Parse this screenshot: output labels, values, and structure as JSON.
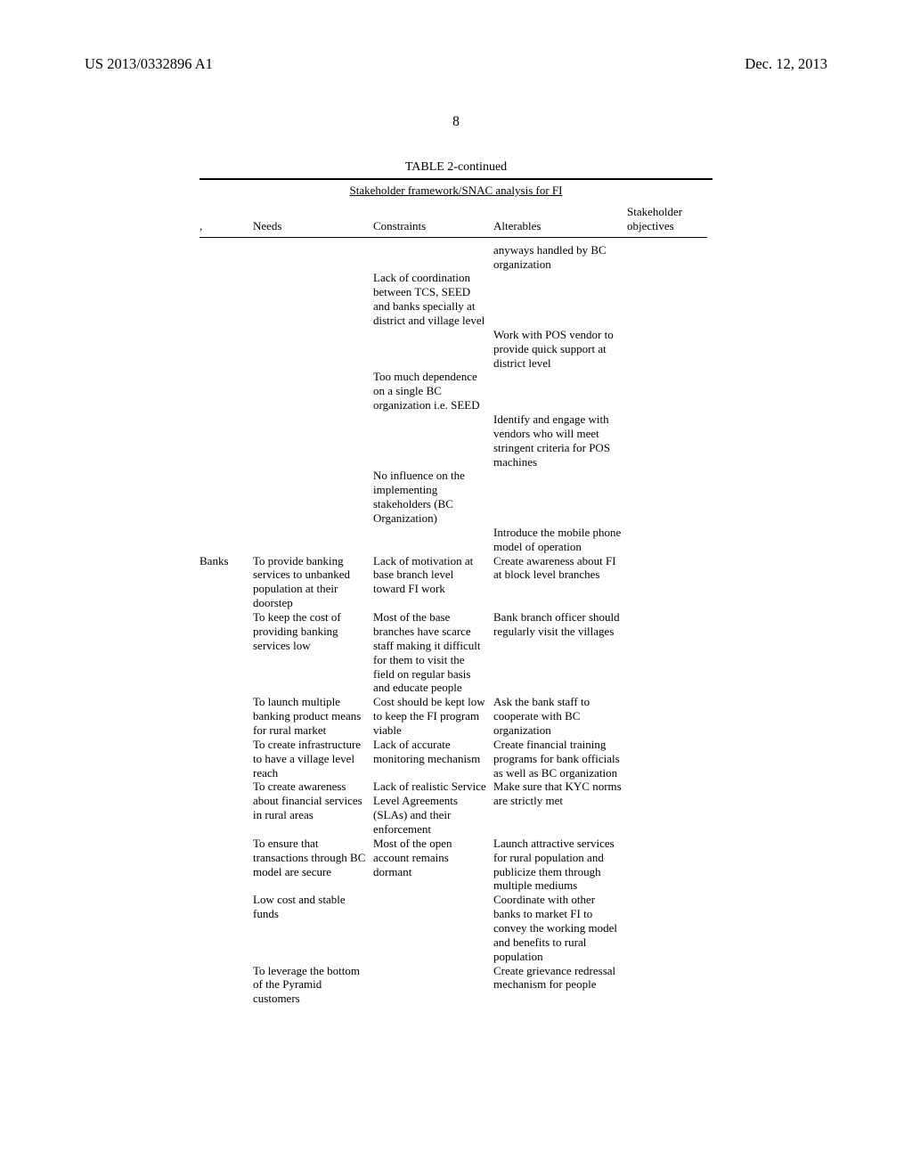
{
  "header": {
    "left": "US 2013/0332896 A1",
    "right": "Dec. 12, 2013"
  },
  "page_number": "8",
  "table": {
    "title": "TABLE 2-continued",
    "subtitle": "Stakeholder framework/SNAC analysis for FI",
    "columns": {
      "stakeholder": ",",
      "needs": "Needs",
      "constraints": "Constraints",
      "alterables": "Alterables",
      "objectives": "Stakeholder objectives"
    },
    "rows": [
      {
        "sh": "",
        "need": "",
        "con": "",
        "alt": "anyways handled by BC organization",
        "obj": ""
      },
      {
        "sh": "",
        "need": "",
        "con": "Lack of coordination between TCS, SEED and banks specially at district and village level",
        "alt": "",
        "obj": ""
      },
      {
        "sh": "",
        "need": "",
        "con": "",
        "alt": "Work with POS vendor to provide quick support at district level",
        "obj": ""
      },
      {
        "sh": "",
        "need": "",
        "con": "Too much dependence on a single BC organization i.e. SEED",
        "alt": "",
        "obj": ""
      },
      {
        "sh": "",
        "need": "",
        "con": "",
        "alt": "Identify and engage with vendors who will meet stringent criteria for POS machines",
        "obj": ""
      },
      {
        "sh": "",
        "need": "",
        "con": "No influence on the implementing stakeholders (BC Organization)",
        "alt": "",
        "obj": ""
      },
      {
        "sh": "",
        "need": "",
        "con": "",
        "alt": "Introduce the mobile phone model of operation",
        "obj": ""
      },
      {
        "sh": "Banks",
        "need": "To provide banking services to unbanked population at their doorstep",
        "con": "Lack of motivation at base branch level toward FI work",
        "alt": "Create awareness about FI at block level branches",
        "obj": ""
      },
      {
        "sh": "",
        "need": "To keep the cost of providing banking services low",
        "con": "Most of the base branches have scarce staff making it difficult for them to visit the field on regular basis and educate people",
        "alt": "Bank branch officer should regularly visit the villages",
        "obj": ""
      },
      {
        "sh": "",
        "need": "To launch multiple banking product means for rural market",
        "con": "Cost should be kept low to keep the FI program viable",
        "alt": "Ask the bank staff to cooperate with BC organization",
        "obj": ""
      },
      {
        "sh": "",
        "need": "To create infrastructure to have a village level reach",
        "con": "Lack of accurate monitoring mechanism",
        "alt": "Create financial training programs for bank officials as well as BC organization",
        "obj": ""
      },
      {
        "sh": "",
        "need": "To create awareness about financial services in rural areas",
        "con": "Lack of realistic Service Level Agreements (SLAs) and their enforcement",
        "alt": "Make sure that KYC norms are strictly met",
        "obj": ""
      },
      {
        "sh": "",
        "need": "To ensure that transactions through BC model are secure",
        "con": "Most of the open account remains dormant",
        "alt": "Launch attractive services for rural population and publicize them through multiple mediums",
        "obj": ""
      },
      {
        "sh": "",
        "need": "Low cost and stable funds",
        "con": "",
        "alt": "Coordinate with other banks to market FI to convey the working model and benefits to rural population",
        "obj": ""
      },
      {
        "sh": "",
        "need": "To leverage the bottom of the Pyramid customers",
        "con": "",
        "alt": "Create grievance redressal mechanism for people",
        "obj": ""
      }
    ]
  }
}
